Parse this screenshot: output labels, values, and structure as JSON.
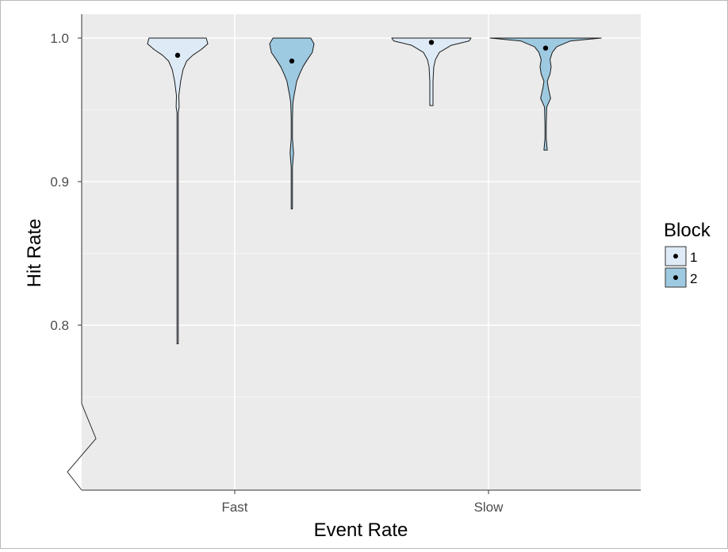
{
  "chart_data": {
    "type": "violin",
    "xlabel": "Event Rate",
    "ylabel": "Hit Rate",
    "categories": [
      "Fast",
      "Slow"
    ],
    "y_ticks": [
      "0.8",
      "0.9",
      "1.0"
    ],
    "y_tick_values": [
      0.8,
      0.9,
      1.0
    ],
    "ylim": [
      0.74,
      1.015
    ],
    "axis_break": true,
    "grid": true,
    "legend": {
      "title": "Block",
      "placement": "right",
      "entries": [
        {
          "label": "1",
          "color": "#deebf7"
        },
        {
          "label": "2",
          "color": "#9ecae1"
        }
      ]
    },
    "series": [
      {
        "name": "1",
        "color": "#deebf7",
        "groups": [
          {
            "category": "Fast",
            "mean": 0.988,
            "min": 0.787,
            "max": 1.0
          },
          {
            "category": "Slow",
            "mean": 0.997,
            "min": 0.953,
            "max": 1.0
          }
        ]
      },
      {
        "name": "2",
        "color": "#9ecae1",
        "groups": [
          {
            "category": "Fast",
            "mean": 0.984,
            "min": 0.881,
            "max": 1.0
          },
          {
            "category": "Slow",
            "mean": 0.993,
            "min": 0.922,
            "max": 1.0
          }
        ]
      }
    ]
  }
}
